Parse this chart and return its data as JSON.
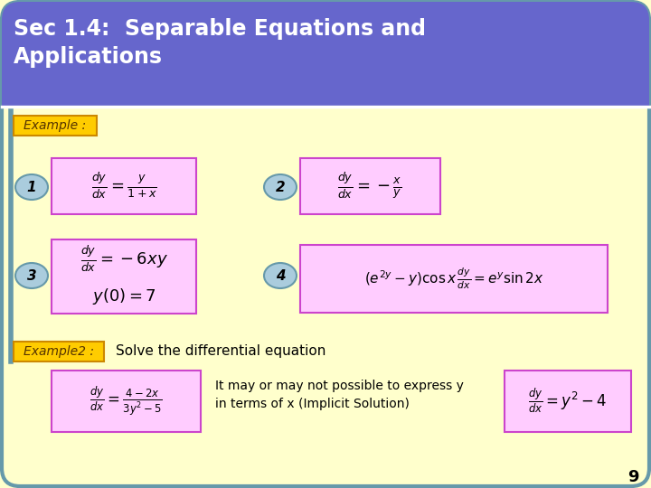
{
  "bg_color": "#ffffcc",
  "header_color": "#6666cc",
  "header_text_color": "#ffffff",
  "header_text": "Sec 1.4:  Separable Equations and\nApplications",
  "example_box_color": "#ffcc00",
  "example_box_edge": "#cc8800",
  "example_text": "Example :",
  "example2_text": "Example2 :",
  "pink_box_color": "#ffccff",
  "pink_box_edge": "#cc44cc",
  "circle_color": "#aaccdd",
  "circle_edge": "#6699aa",
  "circle_text_color": "#000000",
  "eq1": "$\\frac{dy}{dx} = \\frac{y}{1+x}$",
  "eq2": "$\\frac{dy}{dx} = -\\frac{x}{y}$",
  "eq3a": "$\\frac{dy}{dx} = -6xy$",
  "eq3b": "$y(0) = 7$",
  "eq4": "$(e^{2y}-y)\\cos x\\,\\frac{dy}{dx} = e^{y}\\sin 2x$",
  "eq5": "$\\frac{dy}{dx} = \\frac{4-2x}{3y^2-5}$",
  "eq6": "$\\frac{dy}{dx} = y^2 - 4$",
  "solve_text": "Solve the differential equation",
  "implicit_text": "It may or may not possible to express y\nin terms of x (Implicit Solution)",
  "page_num": "9",
  "border_color": "#6699aa",
  "left_bar_color": "#6699aa"
}
